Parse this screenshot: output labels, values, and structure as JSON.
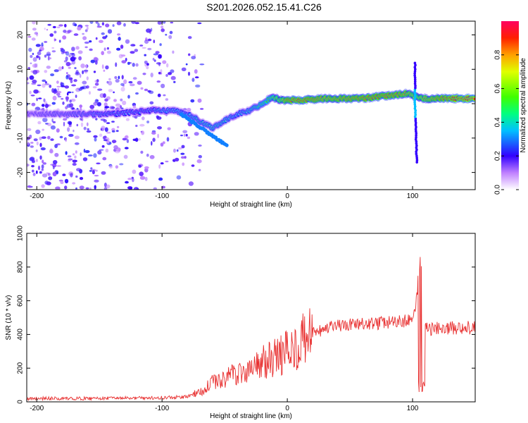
{
  "title": "S201.2026.052.15.41.C26",
  "chart_data": [
    {
      "type": "heatmap",
      "xlabel": "Height of straight line (km)",
      "ylabel": "Frequency (Hz)",
      "xlim": [
        -208,
        150
      ],
      "ylim": [
        -25,
        24
      ],
      "xticks": [
        -200,
        -100,
        0,
        100
      ],
      "yticks": [
        -20,
        -10,
        0,
        10,
        20
      ],
      "colorbar": {
        "label": "Normalized spectral amplitude",
        "range": [
          0,
          1
        ],
        "ticks": [
          "0.0",
          "0.2",
          "0.4",
          "0.6",
          "0.8"
        ],
        "tick_values": [
          0.0,
          0.2,
          0.4,
          0.6,
          0.8
        ]
      },
      "ridge": {
        "x": [
          -208,
          -170,
          -140,
          -110,
          -100,
          -90,
          -80,
          -70,
          -60,
          -50,
          -40,
          -30,
          -20,
          -12,
          -5,
          0,
          10,
          30,
          60,
          85,
          95,
          102,
          108,
          115,
          130,
          150
        ],
        "freq": [
          -3,
          -3,
          -3,
          -2,
          -2,
          -2,
          -3,
          -5,
          -7,
          -5,
          -3,
          -2,
          0,
          2,
          1,
          1,
          1,
          1.5,
          1.5,
          2.5,
          3,
          2,
          1.5,
          1.5,
          1.5,
          1.5
        ],
        "amplitude": [
          0.2,
          0.25,
          0.3,
          0.3,
          0.35,
          0.35,
          0.35,
          0.4,
          0.4,
          0.4,
          0.35,
          0.4,
          0.5,
          0.6,
          0.7,
          0.85,
          0.9,
          0.8,
          0.85,
          0.85,
          0.8,
          0.7,
          0.75,
          0.8,
          0.9,
          0.95
        ]
      }
    },
    {
      "type": "line",
      "xlabel": "Height of straight line (km)",
      "ylabel": "SNR (10 * v/v)",
      "xlim": [
        -208,
        150
      ],
      "ylim": [
        0,
        1000
      ],
      "xticks": [
        -200,
        -100,
        0,
        100
      ],
      "yticks": [
        0,
        200,
        400,
        600,
        800,
        1000
      ],
      "color": "#e83030",
      "series_envelope": {
        "x": [
          -208,
          -150,
          -100,
          -80,
          -70,
          -60,
          -50,
          -40,
          -30,
          -20,
          -10,
          0,
          10,
          20,
          30,
          40,
          60,
          80,
          95,
          100,
          103,
          105,
          107,
          109,
          112,
          120,
          150
        ],
        "y": [
          20,
          20,
          25,
          30,
          60,
          110,
          140,
          170,
          190,
          230,
          260,
          300,
          350,
          400,
          430,
          450,
          460,
          470,
          480,
          500,
          600,
          700,
          900,
          500,
          420,
          440,
          440
        ]
      }
    }
  ]
}
